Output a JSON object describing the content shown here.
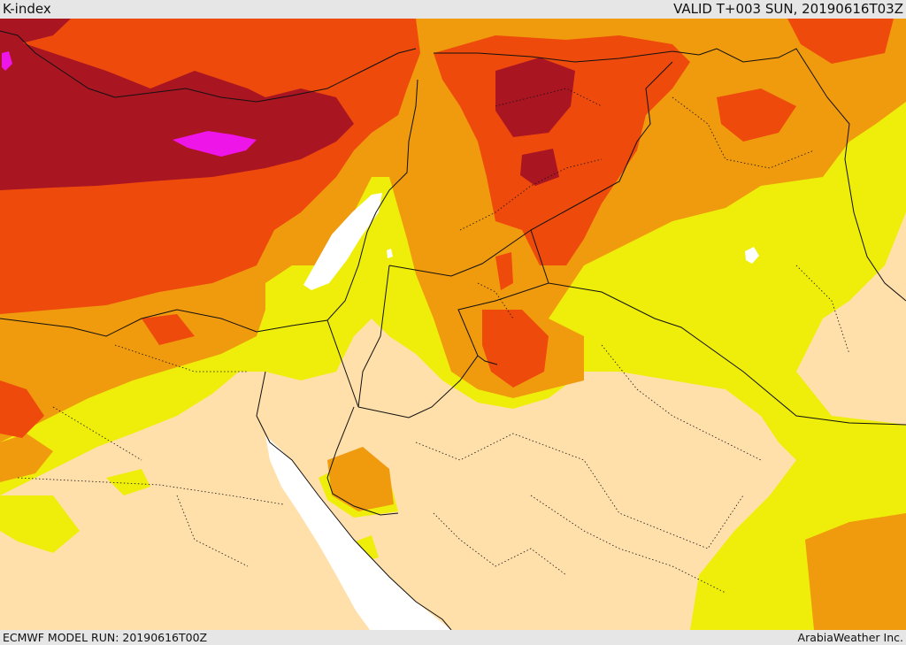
{
  "header": {
    "title": "K-index",
    "valid_time": "VALID T+003 SUN, 20190616T03Z"
  },
  "footer": {
    "model_run": "ECMWF MODEL RUN: 20190616T00Z",
    "credit": "ArabiaWeather Inc."
  },
  "map": {
    "field": "K-index",
    "colors": {
      "land_background": "#ffdfaa",
      "sea": "#ffffff",
      "level_1": "#eeee0a",
      "level_2": "#f09a0e",
      "level_3": "#ee4a0c",
      "level_4": "#aa1522",
      "level_5": "#ee15e8",
      "borders": "#111111"
    }
  }
}
